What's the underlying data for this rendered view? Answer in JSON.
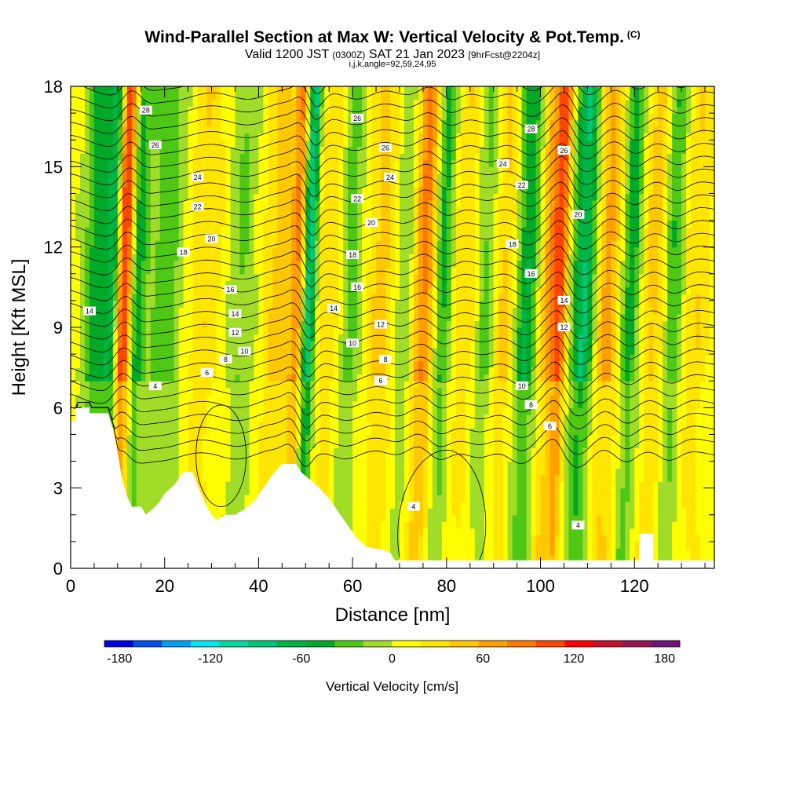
{
  "header": {
    "title": "Wind-Parallel Section at Max W: Vertical Velocity & Pot.Temp.",
    "title_mark": "(C)",
    "valid_prefix": "Valid 1200 JST",
    "valid_utc": "(0300Z)",
    "valid_date": "SAT 21 Jan 2023",
    "forecast": "[9hrFcst@2204z]",
    "grid_info": "i,j,k,angle=92,59,24,95"
  },
  "chart_data": {
    "type": "heatmap",
    "title": "Wind-Parallel Section at Max W: Vertical Velocity & Pot.Temp.",
    "xlabel": "Distance [nm]",
    "ylabel": "Height [Kft MSL]",
    "xlim": [
      0,
      137
    ],
    "ylim": [
      0,
      18
    ],
    "x_ticks": [
      "0",
      "20",
      "40",
      "60",
      "80",
      "100",
      "120"
    ],
    "y_ticks": [
      "0",
      "3",
      "6",
      "9",
      "12",
      "15",
      "18"
    ],
    "x_tick_values": [
      0,
      20,
      40,
      60,
      80,
      100,
      120
    ],
    "y_tick_values": [
      0,
      3,
      6,
      9,
      12,
      15,
      18
    ],
    "colorbar": {
      "title": "Vertical Velocity [cm/s]",
      "range": [
        -190,
        190
      ],
      "step": 20,
      "tick_labels": [
        "-180",
        "-120",
        "-60",
        "0",
        "60",
        "120",
        "180"
      ],
      "tick_values": [
        -180,
        -120,
        -60,
        0,
        60,
        120,
        180
      ],
      "colors": [
        "#0000e6",
        "#0050f0",
        "#00a0f5",
        "#00e5ee",
        "#00d8a0",
        "#00c878",
        "#00b446",
        "#00aa28",
        "#4ec814",
        "#a0dc28",
        "#ffff00",
        "#ffe600",
        "#ffc800",
        "#ffa000",
        "#ff7800",
        "#ff4600",
        "#ff0000",
        "#c8102e",
        "#961450",
        "#6e1478"
      ]
    },
    "terrain_kft": [
      [
        0,
        5.5
      ],
      [
        1,
        5.5
      ],
      [
        1,
        6.0
      ],
      [
        4,
        6.0
      ],
      [
        4,
        5.8
      ],
      [
        8,
        5.8
      ],
      [
        9,
        5.2
      ],
      [
        10,
        4.3
      ],
      [
        11,
        3.3
      ],
      [
        12,
        2.7
      ],
      [
        13,
        2.3
      ],
      [
        15,
        2.3
      ],
      [
        16,
        2.0
      ],
      [
        18,
        2.3
      ],
      [
        19,
        2.5
      ],
      [
        20,
        2.8
      ],
      [
        22,
        3.1
      ],
      [
        24,
        3.6
      ],
      [
        26,
        3.6
      ],
      [
        27,
        3.1
      ],
      [
        28,
        2.7
      ],
      [
        29,
        2.3
      ],
      [
        30,
        2.0
      ],
      [
        31,
        1.8
      ],
      [
        33,
        2.0
      ],
      [
        35,
        2.0
      ],
      [
        37,
        2.2
      ],
      [
        39,
        2.5
      ],
      [
        41,
        3.0
      ],
      [
        43,
        3.5
      ],
      [
        45,
        3.9
      ],
      [
        48,
        3.9
      ],
      [
        49,
        3.6
      ],
      [
        51,
        3.3
      ],
      [
        53,
        3.0
      ],
      [
        55,
        2.6
      ],
      [
        57,
        2.1
      ],
      [
        59,
        1.6
      ],
      [
        61,
        1.1
      ],
      [
        63,
        0.8
      ],
      [
        66,
        0.7
      ],
      [
        68,
        0.6
      ],
      [
        69,
        0.3
      ],
      [
        72,
        0.3
      ],
      [
        100,
        0.3
      ],
      [
        121,
        0.3
      ],
      [
        121,
        1.3
      ],
      [
        124,
        1.3
      ],
      [
        124,
        0.3
      ],
      [
        137,
        0.3
      ]
    ],
    "theta_contour_labels": [
      {
        "text": "14",
        "x": 4,
        "y": 9.6
      },
      {
        "text": "4",
        "x": 18,
        "y": 6.8
      },
      {
        "text": "6",
        "x": 29,
        "y": 7.3
      },
      {
        "text": "8",
        "x": 33,
        "y": 7.8
      },
      {
        "text": "10",
        "x": 37,
        "y": 8.1
      },
      {
        "text": "12",
        "x": 35,
        "y": 8.8
      },
      {
        "text": "14",
        "x": 35,
        "y": 9.5
      },
      {
        "text": "16",
        "x": 34,
        "y": 10.4
      },
      {
        "text": "18",
        "x": 24,
        "y": 11.8
      },
      {
        "text": "20",
        "x": 30,
        "y": 12.3
      },
      {
        "text": "22",
        "x": 27,
        "y": 13.5
      },
      {
        "text": "24",
        "x": 27,
        "y": 14.6
      },
      {
        "text": "26",
        "x": 18,
        "y": 15.8
      },
      {
        "text": "28",
        "x": 16,
        "y": 17.1
      },
      {
        "text": "26",
        "x": 61,
        "y": 16.8
      },
      {
        "text": "26",
        "x": 67,
        "y": 15.7
      },
      {
        "text": "24",
        "x": 68,
        "y": 14.6
      },
      {
        "text": "22",
        "x": 61,
        "y": 13.8
      },
      {
        "text": "20",
        "x": 64,
        "y": 12.9
      },
      {
        "text": "18",
        "x": 60,
        "y": 11.7
      },
      {
        "text": "16",
        "x": 61,
        "y": 10.5
      },
      {
        "text": "14",
        "x": 56,
        "y": 9.7
      },
      {
        "text": "12",
        "x": 66,
        "y": 9.1
      },
      {
        "text": "10",
        "x": 60,
        "y": 8.4
      },
      {
        "text": "8",
        "x": 67,
        "y": 7.8
      },
      {
        "text": "6",
        "x": 66,
        "y": 7.0
      },
      {
        "text": "4",
        "x": 73,
        "y": 2.3
      },
      {
        "text": "28",
        "x": 98,
        "y": 16.4
      },
      {
        "text": "26",
        "x": 105,
        "y": 15.6
      },
      {
        "text": "24",
        "x": 92,
        "y": 15.1
      },
      {
        "text": "22",
        "x": 96,
        "y": 14.3
      },
      {
        "text": "20",
        "x": 108,
        "y": 13.2
      },
      {
        "text": "18",
        "x": 94,
        "y": 12.1
      },
      {
        "text": "16",
        "x": 98,
        "y": 11.0
      },
      {
        "text": "14",
        "x": 105,
        "y": 10.0
      },
      {
        "text": "12",
        "x": 105,
        "y": 9.0
      },
      {
        "text": "10",
        "x": 96,
        "y": 6.8
      },
      {
        "text": "8",
        "x": 98,
        "y": 6.1
      },
      {
        "text": "6",
        "x": 102,
        "y": 5.3
      },
      {
        "text": "4",
        "x": 108,
        "y": 1.6
      }
    ],
    "velocity_bands": [
      {
        "x": 5,
        "w": 2.5,
        "v": -60
      },
      {
        "x": 9,
        "w": 1.8,
        "v": -120
      },
      {
        "x": 11,
        "w": 2.2,
        "v": 160
      },
      {
        "x": 13.5,
        "w": 2.0,
        "v": -80
      },
      {
        "x": 20,
        "w": 4.0,
        "v": -40
      },
      {
        "x": 28,
        "w": 4.0,
        "v": 30
      },
      {
        "x": 36,
        "w": 3.0,
        "v": -30
      },
      {
        "x": 44,
        "w": 3.0,
        "v": 40
      },
      {
        "x": 48,
        "w": 1.5,
        "v": 70
      },
      {
        "x": 50.5,
        "w": 1.4,
        "v": -110
      },
      {
        "x": 55,
        "w": 3.0,
        "v": 30
      },
      {
        "x": 59,
        "w": 2.5,
        "v": -40
      },
      {
        "x": 66,
        "w": 3.0,
        "v": 40
      },
      {
        "x": 71,
        "w": 2.5,
        "v": -30
      },
      {
        "x": 75,
        "w": 2.5,
        "v": 80
      },
      {
        "x": 79,
        "w": 2.0,
        "v": -60
      },
      {
        "x": 84,
        "w": 3.0,
        "v": 30
      },
      {
        "x": 88,
        "w": 2.5,
        "v": -40
      },
      {
        "x": 92,
        "w": 2.5,
        "v": 40
      },
      {
        "x": 97,
        "w": 2.5,
        "v": -70
      },
      {
        "x": 101.5,
        "w": 2.2,
        "v": 60
      },
      {
        "x": 104,
        "w": 1.5,
        "v": 90
      },
      {
        "x": 109,
        "w": 2.5,
        "v": -90
      },
      {
        "x": 114,
        "w": 2.5,
        "v": 60
      },
      {
        "x": 119,
        "w": 2.0,
        "v": -60
      },
      {
        "x": 124,
        "w": 2.5,
        "v": 40
      },
      {
        "x": 128,
        "w": 2.0,
        "v": -50
      },
      {
        "x": 133,
        "w": 2.5,
        "v": 30
      }
    ]
  }
}
